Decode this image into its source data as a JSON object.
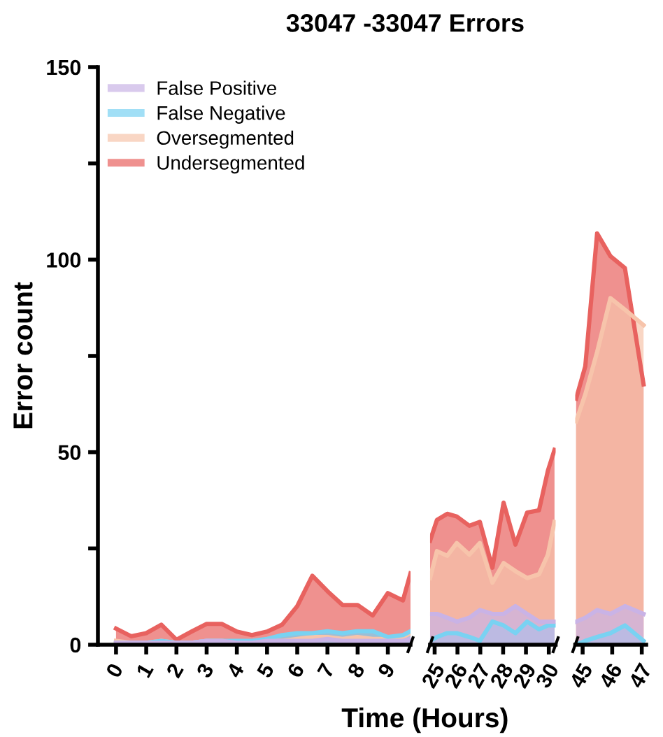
{
  "chart_data": [
    {
      "type": "area",
      "title": "33047 -33047 Errors",
      "xlabel": "Time (Hours)",
      "ylabel": "Error count",
      "legend": "top left",
      "grid": false,
      "x": [
        0,
        0.5,
        1,
        1.5,
        2,
        2.5,
        3,
        3.5,
        4,
        4.5,
        5,
        5.5,
        6,
        6.5,
        7,
        7.5,
        8,
        8.5,
        9,
        9.5,
        9.75
      ],
      "xlim": [
        -0.6,
        9.75
      ],
      "xticks": [
        0,
        1,
        2,
        3,
        4,
        5,
        6,
        7,
        8,
        9
      ],
      "ylim": [
        0,
        150
      ],
      "yticks": [
        0,
        {
          "value": 25,
          "label": null
        },
        50,
        {
          "value": 75,
          "label": null
        },
        100,
        {
          "value": 125,
          "label": null
        },
        150
      ],
      "series": [
        {
          "name": "Undersegmented",
          "color": "#e8625f",
          "values": [
            4.2,
            2.2,
            3,
            5.2,
            1.3,
            3.4,
            5.4,
            5.4,
            3.4,
            2.5,
            3.4,
            5.2,
            10,
            17.9,
            13.9,
            10.3,
            10.3,
            7.6,
            13.4,
            11.5,
            18.5
          ]
        },
        {
          "name": "Oversegmented",
          "color": "#f7c4ab",
          "values": [
            1,
            0.5,
            0.5,
            1,
            0.5,
            0.5,
            1,
            1,
            0.5,
            0.5,
            1,
            1,
            1.5,
            2,
            2,
            1.5,
            2,
            1.5,
            1.5,
            2,
            3
          ]
        },
        {
          "name": "False Negative",
          "color": "#79d2f2",
          "values": [
            0.5,
            0.5,
            0.5,
            1,
            0.5,
            0.5,
            1,
            1,
            1,
            1,
            1.5,
            2.5,
            3,
            3,
            3.5,
            3,
            3.5,
            3.5,
            2,
            2.5,
            3.5
          ]
        },
        {
          "name": "False Positive",
          "color": "#c9b3e6",
          "values": [
            0.5,
            0.5,
            0.5,
            0.5,
            0.5,
            0.5,
            1,
            1,
            0.5,
            0.5,
            1,
            1,
            1,
            1,
            1.5,
            1,
            1,
            1,
            1,
            1,
            1.5
          ]
        }
      ]
    },
    {
      "type": "area",
      "tick_labels": "x",
      "x": [
        24.8,
        25.1,
        25.55,
        25.97,
        26.52,
        26.98,
        27.53,
        28.02,
        28.54,
        29.05,
        29.57,
        29.96,
        30.25
      ],
      "xlim": [
        24.8,
        30.3
      ],
      "xticks": [
        25,
        26,
        27,
        28,
        29,
        30
      ],
      "ylim": [
        0,
        150
      ],
      "series": [
        {
          "color": "#e8625f",
          "values": [
            27,
            32.4,
            34,
            33.3,
            30.9,
            31.9,
            20,
            36.9,
            26,
            34.3,
            34.9,
            45.2,
            50.6
          ]
        },
        {
          "color": "#f7c4ab",
          "values": [
            17.3,
            24.3,
            23.1,
            26.4,
            23.4,
            26.4,
            16.1,
            21.2,
            19.1,
            17.3,
            18.3,
            23.4,
            31.9
          ]
        },
        {
          "color": "#79d2f2",
          "values": [
            1,
            2,
            3,
            3,
            2,
            1,
            6,
            5,
            3,
            6,
            4,
            5,
            5
          ]
        },
        {
          "color": "#c9b3e6",
          "values": [
            8,
            8,
            7,
            6,
            7,
            9,
            8,
            8,
            10,
            8,
            6,
            6,
            6
          ]
        }
      ]
    },
    {
      "type": "area",
      "tick_labels": "x",
      "x": [
        44.78,
        45.09,
        45.49,
        45.94,
        46.43,
        47.06
      ],
      "xlim": [
        44.75,
        47.15
      ],
      "xticks": [
        45,
        46,
        47
      ],
      "ylim": [
        0,
        150
      ],
      "series": [
        {
          "color": "#e8625f",
          "values": [
            63.9,
            72.3,
            106.8,
            100.9,
            97.8,
            67.6
          ]
        },
        {
          "color": "#f7c4ab",
          "values": [
            58,
            65,
            76,
            90,
            87,
            83
          ]
        },
        {
          "color": "#79d2f2",
          "values": [
            0,
            1,
            2,
            3,
            5,
            1
          ]
        },
        {
          "color": "#c9b3e6",
          "values": [
            6,
            7,
            9,
            8,
            10,
            8
          ]
        }
      ]
    }
  ]
}
